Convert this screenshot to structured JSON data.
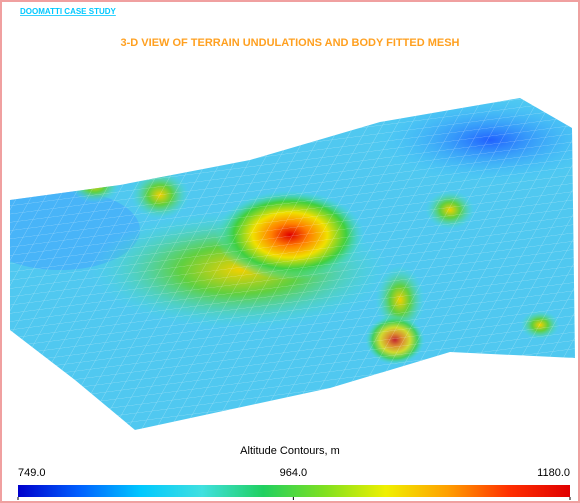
{
  "chart_data": {
    "type": "surface",
    "header": "DOOMATTI CASE STUDY",
    "title": "3-D VIEW OF TERRAIN UNDULATIONS AND BODY FITTED MESH",
    "colorbar": {
      "label": "Altitude Contours, m",
      "lim": [
        749,
        1180
      ],
      "ticks": [
        {
          "value": 749,
          "label": "749.0"
        },
        {
          "value": 964,
          "label": "964.0"
        },
        {
          "value": 1180,
          "label": "1180.0"
        }
      ],
      "colors": [
        "#0000cc",
        "#0060ff",
        "#00c8ff",
        "#40e0e0",
        "#20d060",
        "#80e020",
        "#f0f000",
        "#ffa000",
        "#ff3000",
        "#e00000"
      ]
    }
  }
}
